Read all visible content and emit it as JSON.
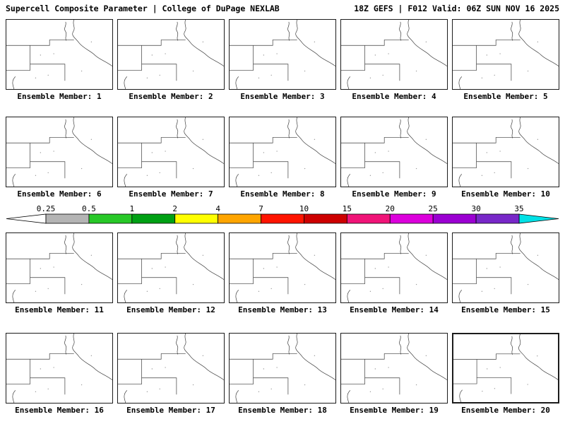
{
  "header": {
    "left": "Supercell Composite Parameter | College of DuPage NEXLAB",
    "right": "18Z GEFS | F012 Valid: 06Z SUN NOV 16 2025"
  },
  "panels": {
    "label_prefix": "Ensemble Member:",
    "members": [
      1,
      2,
      3,
      4,
      5,
      6,
      7,
      8,
      9,
      10,
      11,
      12,
      13,
      14,
      15,
      16,
      17,
      18,
      19,
      20
    ],
    "highlighted_member": 20
  },
  "colorbar": {
    "tick_labels": [
      "0.25",
      "0.5",
      "1",
      "2",
      "4",
      "7",
      "10",
      "15",
      "20",
      "25",
      "30",
      "35"
    ],
    "segment_colors": [
      "#b4b4b4",
      "#28c828",
      "#00a014",
      "#ffff00",
      "#ffa500",
      "#ff1400",
      "#cd0000",
      "#f01478",
      "#dc00dc",
      "#9b00d2",
      "#7828c8"
    ],
    "left_arrow_color": "#ffffff",
    "right_arrow_color": "#00e1e6"
  },
  "chart_data": {
    "type": "heatmap",
    "title": "Supercell Composite Parameter",
    "source": "College of DuPage NEXLAB",
    "model_run": "18Z GEFS",
    "forecast_hour": "F012",
    "valid_time": "06Z SUN NOV 16 2025",
    "ensemble_members": [
      1,
      2,
      3,
      4,
      5,
      6,
      7,
      8,
      9,
      10,
      11,
      12,
      13,
      14,
      15,
      16,
      17,
      18,
      19,
      20
    ],
    "colorbar_breaks": [
      0.25,
      0.5,
      1,
      2,
      4,
      7,
      10,
      15,
      20,
      25,
      30,
      35
    ],
    "legend_position": "middle",
    "note": "All 20 ensemble member map panels show no supercell composite parameter values above 0.25 (maps blank)"
  }
}
